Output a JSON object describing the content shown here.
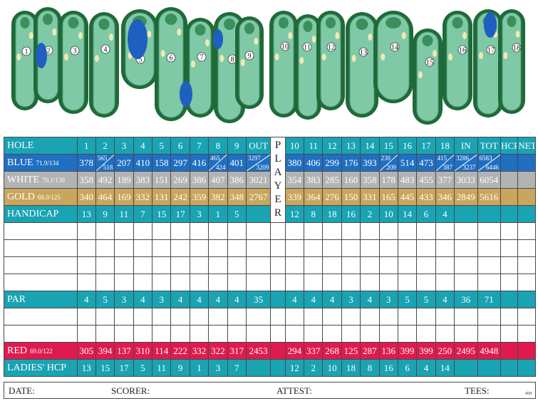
{
  "card": {
    "holes": [
      "1",
      "2",
      "3",
      "4",
      "5",
      "6",
      "7",
      "8",
      "9",
      "OUT",
      "10",
      "11",
      "12",
      "13",
      "14",
      "15",
      "16",
      "17",
      "18",
      "IN",
      "TOT",
      "HCP",
      "NET"
    ],
    "player_letters": [
      "P",
      "L",
      "A",
      "Y",
      "E",
      "R"
    ],
    "rows": {
      "hole": {
        "label": "HOLE"
      },
      "blue": {
        "label": "BLUE",
        "rating": "71.9/134",
        "front": [
          "378",
          "565/518",
          "207",
          "410",
          "158",
          "297",
          "416",
          "465/424",
          "401",
          "3297/3209"
        ],
        "back": [
          "380",
          "406",
          "299",
          "176",
          "393",
          "230/209",
          "514",
          "473",
          "415/387",
          "3286/3237",
          "6583/6446",
          "",
          ""
        ]
      },
      "white": {
        "label": "WHITE",
        "rating": "70.1/130",
        "front": [
          "358",
          "492",
          "189",
          "383",
          "151",
          "269",
          "386",
          "407",
          "386",
          "3021"
        ],
        "back": [
          "354",
          "383",
          "285",
          "160",
          "358",
          "178",
          "483",
          "455",
          "377",
          "3033",
          "6054",
          "",
          ""
        ]
      },
      "gold": {
        "label": "GOLD",
        "rating": "68.0/125",
        "front": [
          "340",
          "464",
          "169",
          "332",
          "131",
          "242",
          "359",
          "382",
          "348",
          "2767"
        ],
        "back": [
          "339",
          "364",
          "276",
          "150",
          "331",
          "165",
          "445",
          "433",
          "346",
          "2849",
          "5616",
          "",
          ""
        ]
      },
      "handicap": {
        "label": "HANDICAP",
        "front": [
          "13",
          "9",
          "11",
          "7",
          "15",
          "17",
          "3",
          "1",
          "5",
          ""
        ],
        "back": [
          "12",
          "8",
          "18",
          "16",
          "2",
          "10",
          "14",
          "6",
          "4",
          "",
          "",
          "",
          ""
        ]
      },
      "par": {
        "label": "PAR",
        "front": [
          "4",
          "5",
          "3",
          "4",
          "3",
          "4",
          "4",
          "4",
          "4",
          "35"
        ],
        "back": [
          "4",
          "4",
          "4",
          "3",
          "4",
          "3",
          "5",
          "5",
          "4",
          "36",
          "71",
          "",
          ""
        ]
      },
      "red": {
        "label": "RED",
        "rating": "69.0/122",
        "front": [
          "305",
          "394",
          "137",
          "310",
          "114",
          "222",
          "332",
          "322",
          "317",
          "2453"
        ],
        "back": [
          "294",
          "337",
          "268",
          "125",
          "287",
          "136",
          "399",
          "399",
          "250",
          "2495",
          "4948",
          "",
          ""
        ]
      },
      "ladies": {
        "label": "LADIES' HCP",
        "front": [
          "13",
          "15",
          "17",
          "5",
          "11",
          "9",
          "1",
          "3",
          "7",
          ""
        ],
        "back": [
          "12",
          "2",
          "10",
          "18",
          "8",
          "16",
          "6",
          "4",
          "14",
          "",
          "",
          "",
          ""
        ]
      }
    }
  },
  "footer": {
    "date": "DATE:",
    "scorer": "SCORER:",
    "attest": "ATTEST:",
    "tees": "TEES:",
    "code": "459"
  },
  "course_map": {
    "hole_numbers": [
      "1",
      "2",
      "3",
      "4",
      "5",
      "6",
      "7",
      "8",
      "9",
      "10",
      "11",
      "12",
      "13",
      "14",
      "15",
      "16",
      "17",
      "18"
    ]
  },
  "colors": {
    "teal": "#19a3b3",
    "blue": "#1f6fc2",
    "white_tee": "#b3b3b3",
    "gold": "#c9a65c",
    "red": "#e01a4f",
    "fairway": "#7fc9a6",
    "water": "#1f5fc0",
    "tree": "#1f6a38"
  }
}
